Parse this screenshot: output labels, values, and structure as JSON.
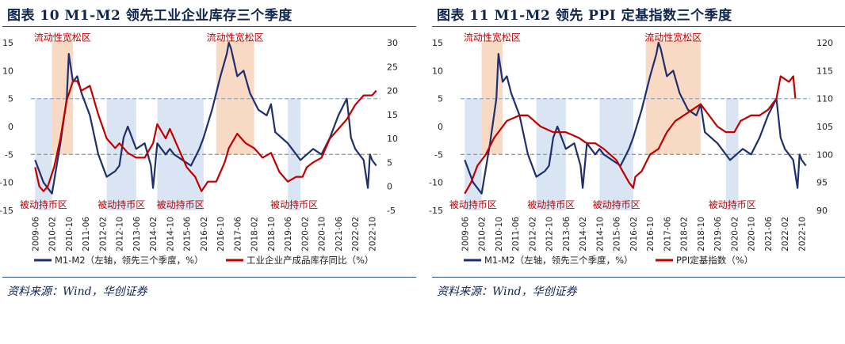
{
  "colors": {
    "title": "#10254f",
    "rule": "#2e4f86",
    "m1m2_line": "#1f2f6e",
    "red_line": "#c00000",
    "expansion_fill": "#f8d9c3",
    "contraction_fill": "#dae5f3",
    "ref_upper": "#8fb0d8",
    "ref_lower": "#9a9a9a",
    "zone_text": "#c00000"
  },
  "left": {
    "title": "图表 10   M1-M2 领先工业企业库存三个季度",
    "source": "资料来源：Wind，华创证券"
  },
  "right": {
    "title": "图表 11   M1-M2 领先 PPI 定基指数三个季度",
    "source": "资料来源：Wind，华创证券"
  },
  "chart_data": [
    {
      "type": "line",
      "x_ticks": [
        "2009-06",
        "2010-02",
        "2010-10",
        "2011-06",
        "2012-02",
        "2012-10",
        "2013-06",
        "2014-02",
        "2014-10",
        "2015-06",
        "2016-02",
        "2016-10",
        "2017-06",
        "2018-02",
        "2018-10",
        "2019-06",
        "2020-02",
        "2020-10",
        "2021-06",
        "2022-02",
        "2022-10"
      ],
      "y_left": {
        "ticks": [
          "15",
          "10",
          "5",
          "0",
          "-5",
          "-10",
          "-15"
        ],
        "min": -15,
        "max": 15
      },
      "y_right": {
        "ticks": [
          "30",
          "25",
          "20",
          "15",
          "10",
          "5",
          "0",
          "-5"
        ],
        "min": -5,
        "max": 30
      },
      "reference_lines": [
        5,
        -5
      ],
      "expansion_zones": [
        {
          "label": "流动性宽松区",
          "start": "2010-02",
          "end": "2010-12"
        },
        {
          "label": "流动性宽松区",
          "start": "2016-08",
          "end": "2018-02"
        }
      ],
      "contraction_zones": [
        {
          "label": "被动持币区",
          "start": "2009-06",
          "end": "2010-02"
        },
        {
          "label": "被动持币区",
          "start": "2012-04",
          "end": "2013-06"
        },
        {
          "label": "被动持币区",
          "start": "2014-04",
          "end": "2016-02"
        },
        {
          "label": "被动持币区",
          "start": "2019-06",
          "end": "2019-12"
        }
      ],
      "series": [
        {
          "name": "M1-M2（左轴，领先三个季度，%）",
          "axis": "left",
          "x": [
            "2009-06",
            "2009-10",
            "2010-02",
            "2010-06",
            "2010-09",
            "2010-10",
            "2010-12",
            "2011-02",
            "2011-04",
            "2011-08",
            "2011-12",
            "2012-04",
            "2012-08",
            "2012-10",
            "2012-12",
            "2013-02",
            "2013-06",
            "2013-10",
            "2014-01",
            "2014-02",
            "2014-04",
            "2014-06",
            "2014-08",
            "2014-10",
            "2014-12",
            "2015-04",
            "2015-08",
            "2015-12",
            "2016-02",
            "2016-06",
            "2016-10",
            "2017-01",
            "2017-02",
            "2017-03",
            "2017-06",
            "2017-09",
            "2017-12",
            "2018-04",
            "2018-08",
            "2018-10",
            "2018-12",
            "2019-06",
            "2019-12",
            "2020-06",
            "2020-10",
            "2021-02",
            "2021-06",
            "2021-10",
            "2021-12",
            "2022-02",
            "2022-06",
            "2022-08",
            "2022-09",
            "2022-10",
            "2022-12"
          ],
          "y": [
            -6,
            -10,
            -12,
            -3,
            5,
            13,
            8,
            9,
            6,
            2,
            -5,
            -9,
            -8,
            -7,
            -2,
            0,
            -4,
            -3,
            -7,
            -11,
            -3,
            -4,
            -5,
            -4,
            -5,
            -6,
            -7,
            -4,
            -2,
            3,
            9,
            13,
            15,
            14,
            9,
            10,
            6,
            3,
            2,
            4,
            -1,
            -3,
            -6,
            -4,
            -5,
            -2,
            2,
            5,
            -2,
            -4,
            -6,
            -11,
            -5,
            -6,
            -7
          ]
        },
        {
          "name": "工业企业产成品库存同比（%）",
          "axis": "right",
          "x": [
            "2009-06",
            "2009-08",
            "2009-10",
            "2009-12",
            "2010-03",
            "2010-06",
            "2010-09",
            "2010-12",
            "2011-02",
            "2011-04",
            "2011-08",
            "2011-12",
            "2012-04",
            "2012-08",
            "2012-10",
            "2013-02",
            "2013-06",
            "2013-10",
            "2014-02",
            "2014-04",
            "2014-08",
            "2014-10",
            "2015-02",
            "2015-06",
            "2015-10",
            "2016-01",
            "2016-04",
            "2016-08",
            "2016-12",
            "2017-02",
            "2017-06",
            "2017-10",
            "2018-02",
            "2018-06",
            "2018-10",
            "2019-02",
            "2019-06",
            "2019-10",
            "2020-01",
            "2020-03",
            "2020-06",
            "2020-10",
            "2021-02",
            "2021-06",
            "2021-10",
            "2022-02",
            "2022-06",
            "2022-10",
            "2022-12"
          ],
          "y": [
            4,
            0,
            -1,
            0,
            4,
            10,
            18,
            22,
            22,
            20,
            21,
            15,
            10,
            8,
            9,
            7,
            6,
            6,
            9,
            13,
            10,
            12,
            8,
            4,
            2,
            -1,
            1,
            1,
            5,
            8,
            11,
            9,
            8,
            6,
            7,
            3,
            1,
            2,
            2,
            4,
            5,
            6,
            10,
            12,
            14,
            17,
            19,
            19,
            20
          ]
        }
      ]
    },
    {
      "type": "line",
      "x_ticks": [
        "2009-06",
        "2010-02",
        "2010-10",
        "2011-06",
        "2012-02",
        "2012-10",
        "2013-06",
        "2014-02",
        "2014-10",
        "2015-06",
        "2016-02",
        "2016-10",
        "2017-06",
        "2018-02",
        "2018-10",
        "2019-06",
        "2020-02",
        "2020-10",
        "2021-06",
        "2022-02",
        "2022-10"
      ],
      "y_left": {
        "ticks": [
          "15",
          "10",
          "5",
          "0",
          "-5",
          "-10",
          "-15"
        ],
        "min": -15,
        "max": 15
      },
      "y_right": {
        "ticks": [
          "120",
          "115",
          "110",
          "105",
          "100",
          "95",
          "90"
        ],
        "min": 90,
        "max": 120
      },
      "reference_lines": [
        5,
        -5
      ],
      "expansion_zones": [
        {
          "label": "流动性宽松区",
          "start": "2010-02",
          "end": "2010-12"
        },
        {
          "label": "流动性宽松区",
          "start": "2016-08",
          "end": "2018-10"
        }
      ],
      "contraction_zones": [
        {
          "label": "被动持币区",
          "start": "2009-06",
          "end": "2010-02"
        },
        {
          "label": "被动持币区",
          "start": "2012-04",
          "end": "2013-06"
        },
        {
          "label": "被动持币区",
          "start": "2014-10",
          "end": "2016-02"
        },
        {
          "label": "被动持币区",
          "start": "2019-10",
          "end": "2020-04"
        }
      ],
      "series": [
        {
          "name": "M1-M2（左轴，领先三个季度，%）",
          "axis": "left",
          "x": [
            "2009-06",
            "2009-10",
            "2010-02",
            "2010-06",
            "2010-09",
            "2010-10",
            "2010-12",
            "2011-02",
            "2011-04",
            "2011-08",
            "2011-12",
            "2012-04",
            "2012-08",
            "2012-10",
            "2012-12",
            "2013-02",
            "2013-06",
            "2013-10",
            "2014-01",
            "2014-02",
            "2014-04",
            "2014-06",
            "2014-08",
            "2014-10",
            "2014-12",
            "2015-04",
            "2015-08",
            "2015-12",
            "2016-02",
            "2016-06",
            "2016-10",
            "2017-01",
            "2017-02",
            "2017-03",
            "2017-06",
            "2017-09",
            "2017-12",
            "2018-04",
            "2018-08",
            "2018-10",
            "2018-12",
            "2019-06",
            "2019-12",
            "2020-06",
            "2020-10",
            "2021-02",
            "2021-06",
            "2021-10",
            "2021-12",
            "2022-02",
            "2022-06",
            "2022-08",
            "2022-09",
            "2022-10",
            "2022-12"
          ],
          "y": [
            -6,
            -10,
            -12,
            -3,
            5,
            13,
            8,
            9,
            6,
            2,
            -5,
            -9,
            -8,
            -7,
            -2,
            0,
            -4,
            -3,
            -7,
            -11,
            -3,
            -4,
            -5,
            -4,
            -5,
            -6,
            -7,
            -4,
            -2,
            3,
            9,
            13,
            15,
            14,
            9,
            10,
            6,
            3,
            2,
            4,
            -1,
            -3,
            -6,
            -4,
            -5,
            -2,
            2,
            5,
            -2,
            -4,
            -6,
            -11,
            -5,
            -6,
            -7
          ]
        },
        {
          "name": "PPI定基指数（%）",
          "axis": "right",
          "x": [
            "2009-06",
            "2009-09",
            "2009-12",
            "2010-04",
            "2010-08",
            "2011-02",
            "2011-08",
            "2011-12",
            "2012-06",
            "2012-12",
            "2013-06",
            "2013-12",
            "2014-04",
            "2014-08",
            "2014-12",
            "2015-06",
            "2015-12",
            "2016-02",
            "2016-03",
            "2016-06",
            "2016-10",
            "2017-02",
            "2017-06",
            "2017-10",
            "2018-02",
            "2018-06",
            "2018-10",
            "2019-02",
            "2019-06",
            "2019-10",
            "2020-02",
            "2020-05",
            "2020-10",
            "2021-02",
            "2021-06",
            "2021-10",
            "2021-12",
            "2022-04",
            "2022-06",
            "2022-07"
          ],
          "y": [
            93,
            95,
            98,
            100,
            103,
            106,
            107,
            107,
            105,
            104,
            104,
            103,
            102,
            102,
            101,
            99,
            95,
            94,
            96,
            97,
            100,
            101,
            104,
            106,
            107,
            108,
            109,
            107,
            105,
            104,
            104,
            106,
            107,
            107,
            108,
            110,
            114,
            113,
            114,
            110
          ]
        }
      ]
    }
  ],
  "legend": {
    "left": [
      "M1-M2（左轴，领先三个季度，%）",
      "工业企业产成品库存同比（%）"
    ],
    "right": [
      "M1-M2（左轴，领先三个季度，%）",
      "PPI定基指数（%）"
    ]
  }
}
